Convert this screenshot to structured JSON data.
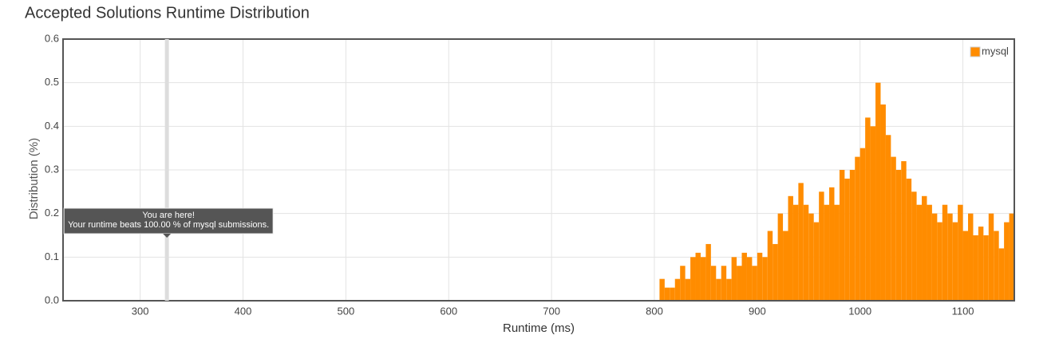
{
  "chart_data": {
    "type": "histogram",
    "title": "Accepted Solutions Runtime Distribution",
    "x_label": "Runtime (ms)",
    "y_label": "Distribution (%)",
    "series": [
      {
        "name": "mysql",
        "color": "#ff8c00",
        "values": [
          0.05,
          0.03,
          0.03,
          0.05,
          0.08,
          0.05,
          0.1,
          0.11,
          0.1,
          0.13,
          0.08,
          0.05,
          0.08,
          0.05,
          0.1,
          0.08,
          0.11,
          0.1,
          0.08,
          0.11,
          0.1,
          0.16,
          0.13,
          0.2,
          0.16,
          0.24,
          0.22,
          0.27,
          0.22,
          0.2,
          0.18,
          0.25,
          0.22,
          0.26,
          0.22,
          0.3,
          0.28,
          0.3,
          0.33,
          0.35,
          0.42,
          0.4,
          0.5,
          0.45,
          0.38,
          0.33,
          0.3,
          0.32,
          0.28,
          0.25,
          0.22,
          0.24,
          0.22,
          0.2,
          0.18,
          0.22,
          0.2,
          0.18,
          0.22,
          0.16,
          0.2,
          0.15,
          0.17,
          0.15,
          0.2,
          0.16,
          0.12,
          0.18,
          0.2
        ]
      }
    ],
    "bins": [
      805,
      810,
      815,
      820,
      825,
      830,
      835,
      840,
      845,
      850,
      855,
      860,
      865,
      870,
      875,
      880,
      885,
      890,
      895,
      900,
      905,
      910,
      915,
      920,
      925,
      930,
      935,
      940,
      945,
      950,
      955,
      960,
      965,
      970,
      975,
      980,
      985,
      990,
      995,
      1000,
      1005,
      1010,
      1015,
      1020,
      1025,
      1030,
      1035,
      1040,
      1045,
      1050,
      1055,
      1060,
      1065,
      1070,
      1075,
      1080,
      1085,
      1090,
      1095,
      1100,
      1105,
      1110,
      1115,
      1120,
      1125,
      1130,
      1135,
      1140,
      1145,
      1150
    ],
    "xlim": [
      225,
      1150
    ],
    "ylim": [
      0,
      0.6
    ],
    "xticks": [
      300,
      400,
      500,
      600,
      700,
      800,
      900,
      1000,
      1100
    ],
    "yticks": [
      {
        "value": 0,
        "label": "0.0"
      },
      0.1,
      0.2,
      0.3,
      0.4,
      0.5,
      0.6
    ],
    "grid": true,
    "legend": "top-right",
    "annotation": {
      "x": 326,
      "lines": [
        "You are here!",
        "Your runtime beats 100.00 % of mysql submissions."
      ]
    }
  }
}
